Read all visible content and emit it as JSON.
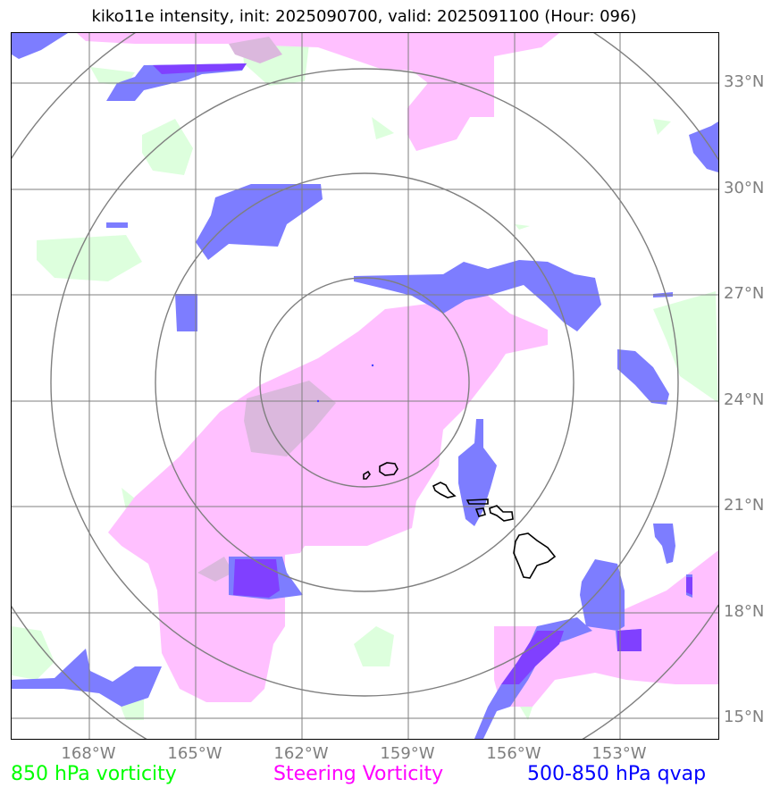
{
  "title": "kiko11e intensity, init: 2025090700, valid: 2025091100 (Hour: 096)",
  "lat_labels": [
    "33°N",
    "30°N",
    "27°N",
    "24°N",
    "21°N",
    "18°N",
    "15°N"
  ],
  "lon_labels": [
    "168°W",
    "165°W",
    "162°W",
    "159°W",
    "156°W",
    "153°W"
  ],
  "legend": {
    "vorticity_850": "850 hPa vorticity",
    "steering": "Steering Vorticity",
    "qvap": "500-850 hPa qvap"
  },
  "colors": {
    "vorticity_850": "#00ff00",
    "steering": "#ff00ff",
    "qvap": "#0000ff",
    "grid": "#7f7f7f",
    "fill_green": "#ddffdd",
    "fill_pink": "#ffc0ff",
    "fill_blue": "#7d7dff"
  }
}
